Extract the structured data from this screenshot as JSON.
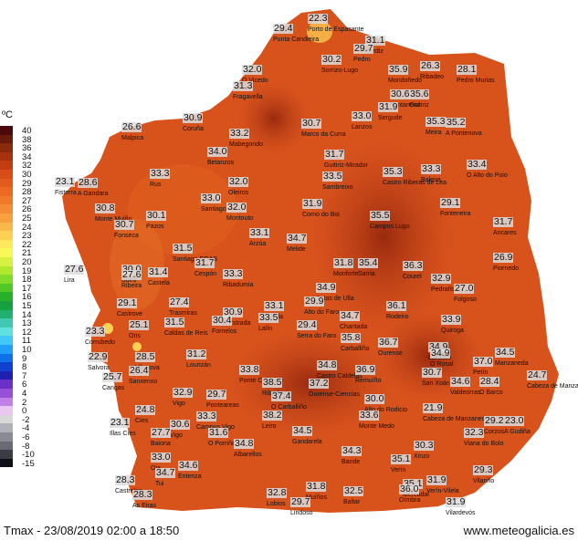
{
  "legend": {
    "unit": "ºC",
    "items": [
      {
        "label": "40",
        "color": "#4a0a0a"
      },
      {
        "label": "38",
        "color": "#6a1a0a"
      },
      {
        "label": "36",
        "color": "#8a2a0c"
      },
      {
        "label": "34",
        "color": "#a8320e"
      },
      {
        "label": "32",
        "color": "#c23e12"
      },
      {
        "label": "30",
        "color": "#d84c18"
      },
      {
        "label": "29",
        "color": "#e25a1e"
      },
      {
        "label": "28",
        "color": "#ea6a24"
      },
      {
        "label": "27",
        "color": "#f07a2c"
      },
      {
        "label": "26",
        "color": "#f48c36"
      },
      {
        "label": "25",
        "color": "#f8a040"
      },
      {
        "label": "24",
        "color": "#fbb84a"
      },
      {
        "label": "23",
        "color": "#fdd054"
      },
      {
        "label": "22",
        "color": "#fee85c"
      },
      {
        "label": "21",
        "color": "#f8f85a"
      },
      {
        "label": "20",
        "color": "#d8f040"
      },
      {
        "label": "19",
        "color": "#b0e830"
      },
      {
        "label": "18",
        "color": "#80dc28"
      },
      {
        "label": "17",
        "color": "#50c828"
      },
      {
        "label": "16",
        "color": "#28b028"
      },
      {
        "label": "15",
        "color": "#18a040"
      },
      {
        "label": "14",
        "color": "#20b070"
      },
      {
        "label": "13",
        "color": "#40c8b0"
      },
      {
        "label": "12",
        "color": "#60e0e0"
      },
      {
        "label": "11",
        "color": "#40c8f8"
      },
      {
        "label": "10",
        "color": "#20a0f8"
      },
      {
        "label": "9",
        "color": "#1070e8"
      },
      {
        "label": "8",
        "color": "#1040d0"
      },
      {
        "label": "7",
        "color": "#2020b0"
      },
      {
        "label": "6",
        "color": "#6a30c8"
      },
      {
        "label": "4",
        "color": "#9850d8"
      },
      {
        "label": "2",
        "color": "#c080e8"
      },
      {
        "label": "0",
        "color": "#e8c8f0"
      },
      {
        "label": "-2",
        "color": "#d8d8d8"
      },
      {
        "label": "-4",
        "color": "#b0b0b8"
      },
      {
        "label": "-6",
        "color": "#8a8a94"
      },
      {
        "label": "-8",
        "color": "#6a6a74"
      },
      {
        "label": "-10",
        "color": "#3c3c44"
      },
      {
        "label": "-15",
        "color": "#101018"
      }
    ]
  },
  "map": {
    "sea_color": "#ffffff",
    "land_color": "#d8521c",
    "hot_color": "#b83414"
  },
  "stations": [
    {
      "value": "22.3",
      "name": "Porto de Espasante"
    },
    {
      "value": "29.4",
      "name": "Punta Candieira"
    },
    {
      "value": "31.1",
      "name": "Xerdiz"
    },
    {
      "value": "29.7",
      "name": "Pedro"
    },
    {
      "value": "30.2",
      "name": "Sorrizo-Lugo"
    },
    {
      "value": "35.9",
      "name": "Mondoñedo"
    },
    {
      "value": "26.3",
      "name": "Ribadeo"
    },
    {
      "value": "28.1",
      "name": "Pedro Murias"
    },
    {
      "value": "32.0",
      "name": "O Vicedo"
    },
    {
      "value": "31.3",
      "name": "Fragavella"
    },
    {
      "value": "30.6",
      "name": "Fontaneira"
    },
    {
      "value": "35.6",
      "name": "Guitiriz"
    },
    {
      "value": "31.9",
      "name": "Sergude"
    },
    {
      "value": "33.0",
      "name": "Lanzos"
    },
    {
      "value": "35.3",
      "name": "Meira"
    },
    {
      "value": "35.2",
      "name": "A Pontenova"
    },
    {
      "value": "26.6",
      "name": "Malpica"
    },
    {
      "value": "30.9",
      "name": "Coruña"
    },
    {
      "value": "33.2",
      "name": "Mabegondo"
    },
    {
      "value": "30.7",
      "name": "Marco da Curra"
    },
    {
      "value": "34.0",
      "name": "Betanzos"
    },
    {
      "value": "31.7",
      "name": "Guitiriz-Mirador"
    },
    {
      "value": "35.3",
      "name": "Castro Riberas de Lea"
    },
    {
      "value": "33.3",
      "name": "Baleira"
    },
    {
      "value": "33.4",
      "name": "O Alto do Poio"
    },
    {
      "value": "23.1",
      "name": "Fisterra"
    },
    {
      "value": "28.6",
      "name": "A Gandara"
    },
    {
      "value": "33.3",
      "name": "Rus"
    },
    {
      "value": "33.5",
      "name": "Sambreixo"
    },
    {
      "value": "32.0",
      "name": "Oleiros"
    },
    {
      "value": "33.0",
      "name": "Santiago"
    },
    {
      "value": "32.0",
      "name": "Montouto"
    },
    {
      "value": "30.8",
      "name": "Monte Muiño"
    },
    {
      "value": "30.1",
      "name": "Pazos"
    },
    {
      "value": "31.9",
      "name": "Corno do Boi"
    },
    {
      "value": "35.5",
      "name": "Campus Lugo"
    },
    {
      "value": "29.1",
      "name": "Fonteneira"
    },
    {
      "value": "30.7",
      "name": "Fonseca"
    },
    {
      "value": "31.7",
      "name": "Ancares"
    },
    {
      "value": "33.1",
      "name": "Arzúa"
    },
    {
      "value": "34.7",
      "name": "Melide"
    },
    {
      "value": "31.5",
      "name": "Santiago EOAS"
    },
    {
      "value": "27.6",
      "name": "Lira"
    },
    {
      "value": "30.0",
      "name": "Boiro"
    },
    {
      "value": "31.4",
      "name": "Castela"
    },
    {
      "value": "31.7",
      "name": "Cespón"
    },
    {
      "value": "33.3",
      "name": "Ribadumia"
    },
    {
      "value": "31.8",
      "name": "Monforte"
    },
    {
      "value": "35.4",
      "name": "Sarria"
    },
    {
      "value": "36.3",
      "name": "Courel"
    },
    {
      "value": "26.9",
      "name": "Piornedo"
    },
    {
      "value": "27.6",
      "name": "Ribeira"
    },
    {
      "value": "32.9",
      "name": "Pedrafita"
    },
    {
      "value": "27.0",
      "name": "Folgoso"
    },
    {
      "value": "29.1",
      "name": "Castrove"
    },
    {
      "value": "27.4",
      "name": "Trasmiras"
    },
    {
      "value": "34.9",
      "name": "Antas de Ulla"
    },
    {
      "value": "33.1",
      "name": "Silleda"
    },
    {
      "value": "29.9",
      "name": "Alto do Faro"
    },
    {
      "value": "36.1",
      "name": "Rodeiro"
    },
    {
      "value": "25.1",
      "name": "Ons"
    },
    {
      "value": "30.9",
      "name": "A Estrada"
    },
    {
      "value": "30.4",
      "name": "Fornelos"
    },
    {
      "value": "33.5",
      "name": "Lalín"
    },
    {
      "value": "29.4",
      "name": "Serra do Faro"
    },
    {
      "value": "34.7",
      "name": "Chantada"
    },
    {
      "value": "33.9",
      "name": "Quiroga"
    },
    {
      "value": "31.5",
      "name": "Caldas de Reis"
    },
    {
      "value": "23.3",
      "name": "Corrubedo"
    },
    {
      "value": "35.8",
      "name": "Carballiño"
    },
    {
      "value": "36.7",
      "name": "Ourense"
    },
    {
      "value": "34.9",
      "name": "Larouco"
    },
    {
      "value": "22.9",
      "name": "Salvora"
    },
    {
      "value": "28.5",
      "name": "Vilanova"
    },
    {
      "value": "31.2",
      "name": "Lourizán"
    },
    {
      "value": "34.9",
      "name": "O Rosal"
    },
    {
      "value": "37.0",
      "name": "Petín"
    },
    {
      "value": "34.5",
      "name": "Manzaneda"
    },
    {
      "value": "26.4",
      "name": "Sanxenxo"
    },
    {
      "value": "33.8",
      "name": "Ponte Caldelas"
    },
    {
      "value": "34.8",
      "name": "Castro Caldelas"
    },
    {
      "value": "36.9",
      "name": "Remuíño"
    },
    {
      "value": "30.7",
      "name": "San Xoán"
    },
    {
      "value": "34.6",
      "name": "Valdeorras"
    },
    {
      "value": "28.4",
      "name": "O Barco"
    },
    {
      "value": "24.7",
      "name": "Cabeza de Manzaneda"
    },
    {
      "value": "25.7",
      "name": "Cangas"
    },
    {
      "value": "38.5",
      "name": "Ribadavia"
    },
    {
      "value": "37.2",
      "name": "Ourense-Ciencias"
    },
    {
      "value": "32.9",
      "name": "Vigo"
    },
    {
      "value": "29.7",
      "name": "Ponteareas"
    },
    {
      "value": "37.4",
      "name": "O Carballiño"
    },
    {
      "value": "30.0",
      "name": "Alto do Rodicio"
    },
    {
      "value": "21.9",
      "name": "Cabeza de Manzaneda"
    },
    {
      "value": "24.8",
      "name": "Cíes"
    },
    {
      "value": "33.3",
      "name": "Campus Vigo"
    },
    {
      "value": "38.2",
      "name": "Leiro"
    },
    {
      "value": "33.6",
      "name": "Monte Medo"
    },
    {
      "value": "29.2",
      "name": "Corzos"
    },
    {
      "value": "23.0",
      "name": "A Gudiña"
    },
    {
      "value": "23.1",
      "name": "Illas Cíes"
    },
    {
      "value": "30.6",
      "name": "Vigo"
    },
    {
      "value": "34.5",
      "name": "Gandarela"
    },
    {
      "value": "32.3",
      "name": "Viana do Bolo"
    },
    {
      "value": "27.7",
      "name": "Baiona"
    },
    {
      "value": "31.6",
      "name": "O Porriño"
    },
    {
      "value": "34.8",
      "name": "Albarellos"
    },
    {
      "value": "30.3",
      "name": "Xinzo"
    },
    {
      "value": "33.0",
      "name": "Oia"
    },
    {
      "value": "34.6",
      "name": "Entenza"
    },
    {
      "value": "34.3",
      "name": "Bande"
    },
    {
      "value": "35.1",
      "name": "Verín"
    },
    {
      "value": "29.3",
      "name": "Vilariño"
    },
    {
      "value": "34.7",
      "name": "Tui"
    },
    {
      "value": "28.3",
      "name": "Castrelos"
    },
    {
      "value": "35.1",
      "name": "Mercadal"
    },
    {
      "value": "31.9",
      "name": "Verín-Vilela"
    },
    {
      "value": "28.3",
      "name": "As Eiras"
    },
    {
      "value": "32.8",
      "name": "Lobios"
    },
    {
      "value": "31.8",
      "name": "Muíños"
    },
    {
      "value": "32.5",
      "name": "Baltar"
    },
    {
      "value": "36.0",
      "name": "Oímbra"
    },
    {
      "value": "29.7",
      "name": "Lindoso"
    },
    {
      "value": "31.9",
      "name": "Vilardevós"
    }
  ],
  "footer": {
    "left": "Tmax - 23/08/2019 02:00 a 18:50",
    "right": "www.meteogalicia.es"
  }
}
